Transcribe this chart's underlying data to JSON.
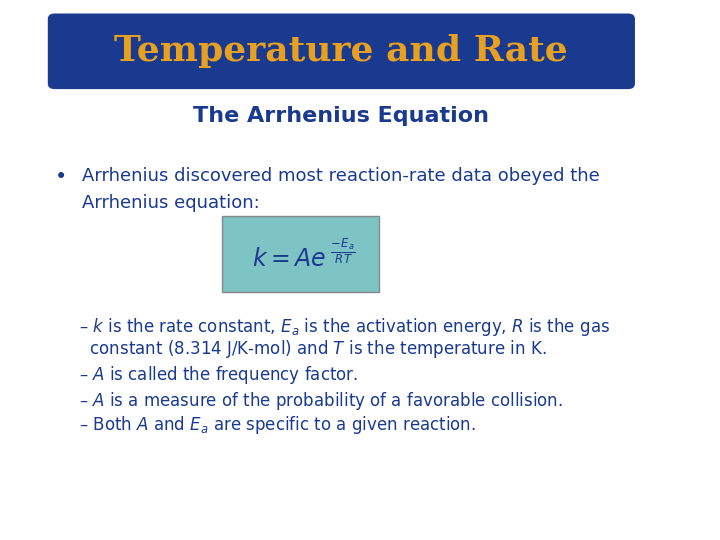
{
  "bg_color": "#ffffff",
  "title_box_color": "#1a3a8f",
  "title_text": "Temperature and Rate",
  "title_text_color": "#e8a020",
  "subtitle_text": "The Arrhenius Equation",
  "subtitle_color": "#1a3a8f",
  "body_color": "#1a3a8f",
  "equation_bg": "#7fc4c4",
  "bullet_text": "Arrhenius discovered most reaction-rate data obeyed the\nArrhenius equation:",
  "dash_items": [
    "– $k$ is the rate constant, $E_a$ is the activation energy, $R$ is the gas\n  constant (8.314 J/K-mol) and $T$ is the temperature in K.",
    "– $A$ is called the frequency factor.",
    "– $A$ is a measure of the probability of a favorable collision.",
    "– Both $A$ and $E_a$ are specific to a given reaction."
  ]
}
